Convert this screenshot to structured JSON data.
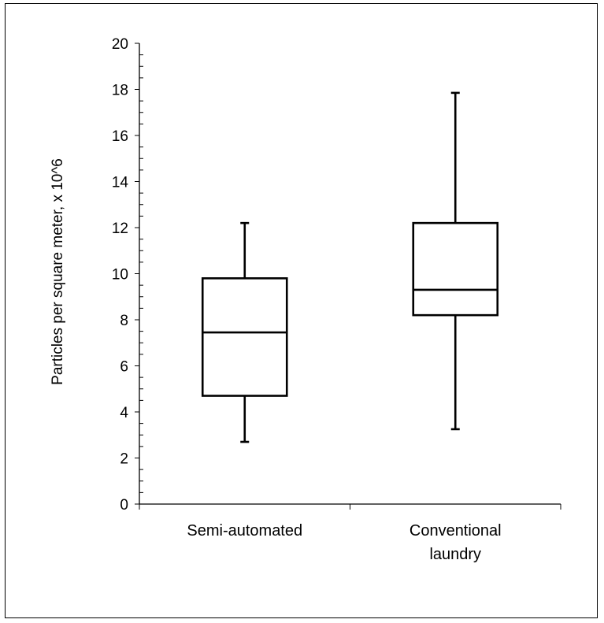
{
  "chart_data": {
    "type": "boxplot",
    "title": "",
    "xlabel": "",
    "ylabel": "Particles per square meter, x 10^6",
    "ylim": [
      0,
      20
    ],
    "y_ticks": [
      "0",
      "2",
      "4",
      "6",
      "8",
      "10",
      "12",
      "14",
      "16",
      "18",
      "20"
    ],
    "categories": [
      {
        "lines": [
          "Semi-automated"
        ]
      },
      {
        "lines": [
          "Conventional",
          "laundry"
        ]
      }
    ],
    "boxes": [
      {
        "category": "Semi-automated",
        "min": 2.7,
        "q1": 4.7,
        "median": 7.45,
        "q3": 9.8,
        "max": 12.2
      },
      {
        "category": "Conventional laundry",
        "min": 3.25,
        "q1": 8.2,
        "median": 9.3,
        "q3": 12.2,
        "max": 17.85
      }
    ],
    "grid": false,
    "legend": "none",
    "colors": {
      "stroke": "#000000",
      "box_fill": "#ffffff"
    }
  }
}
